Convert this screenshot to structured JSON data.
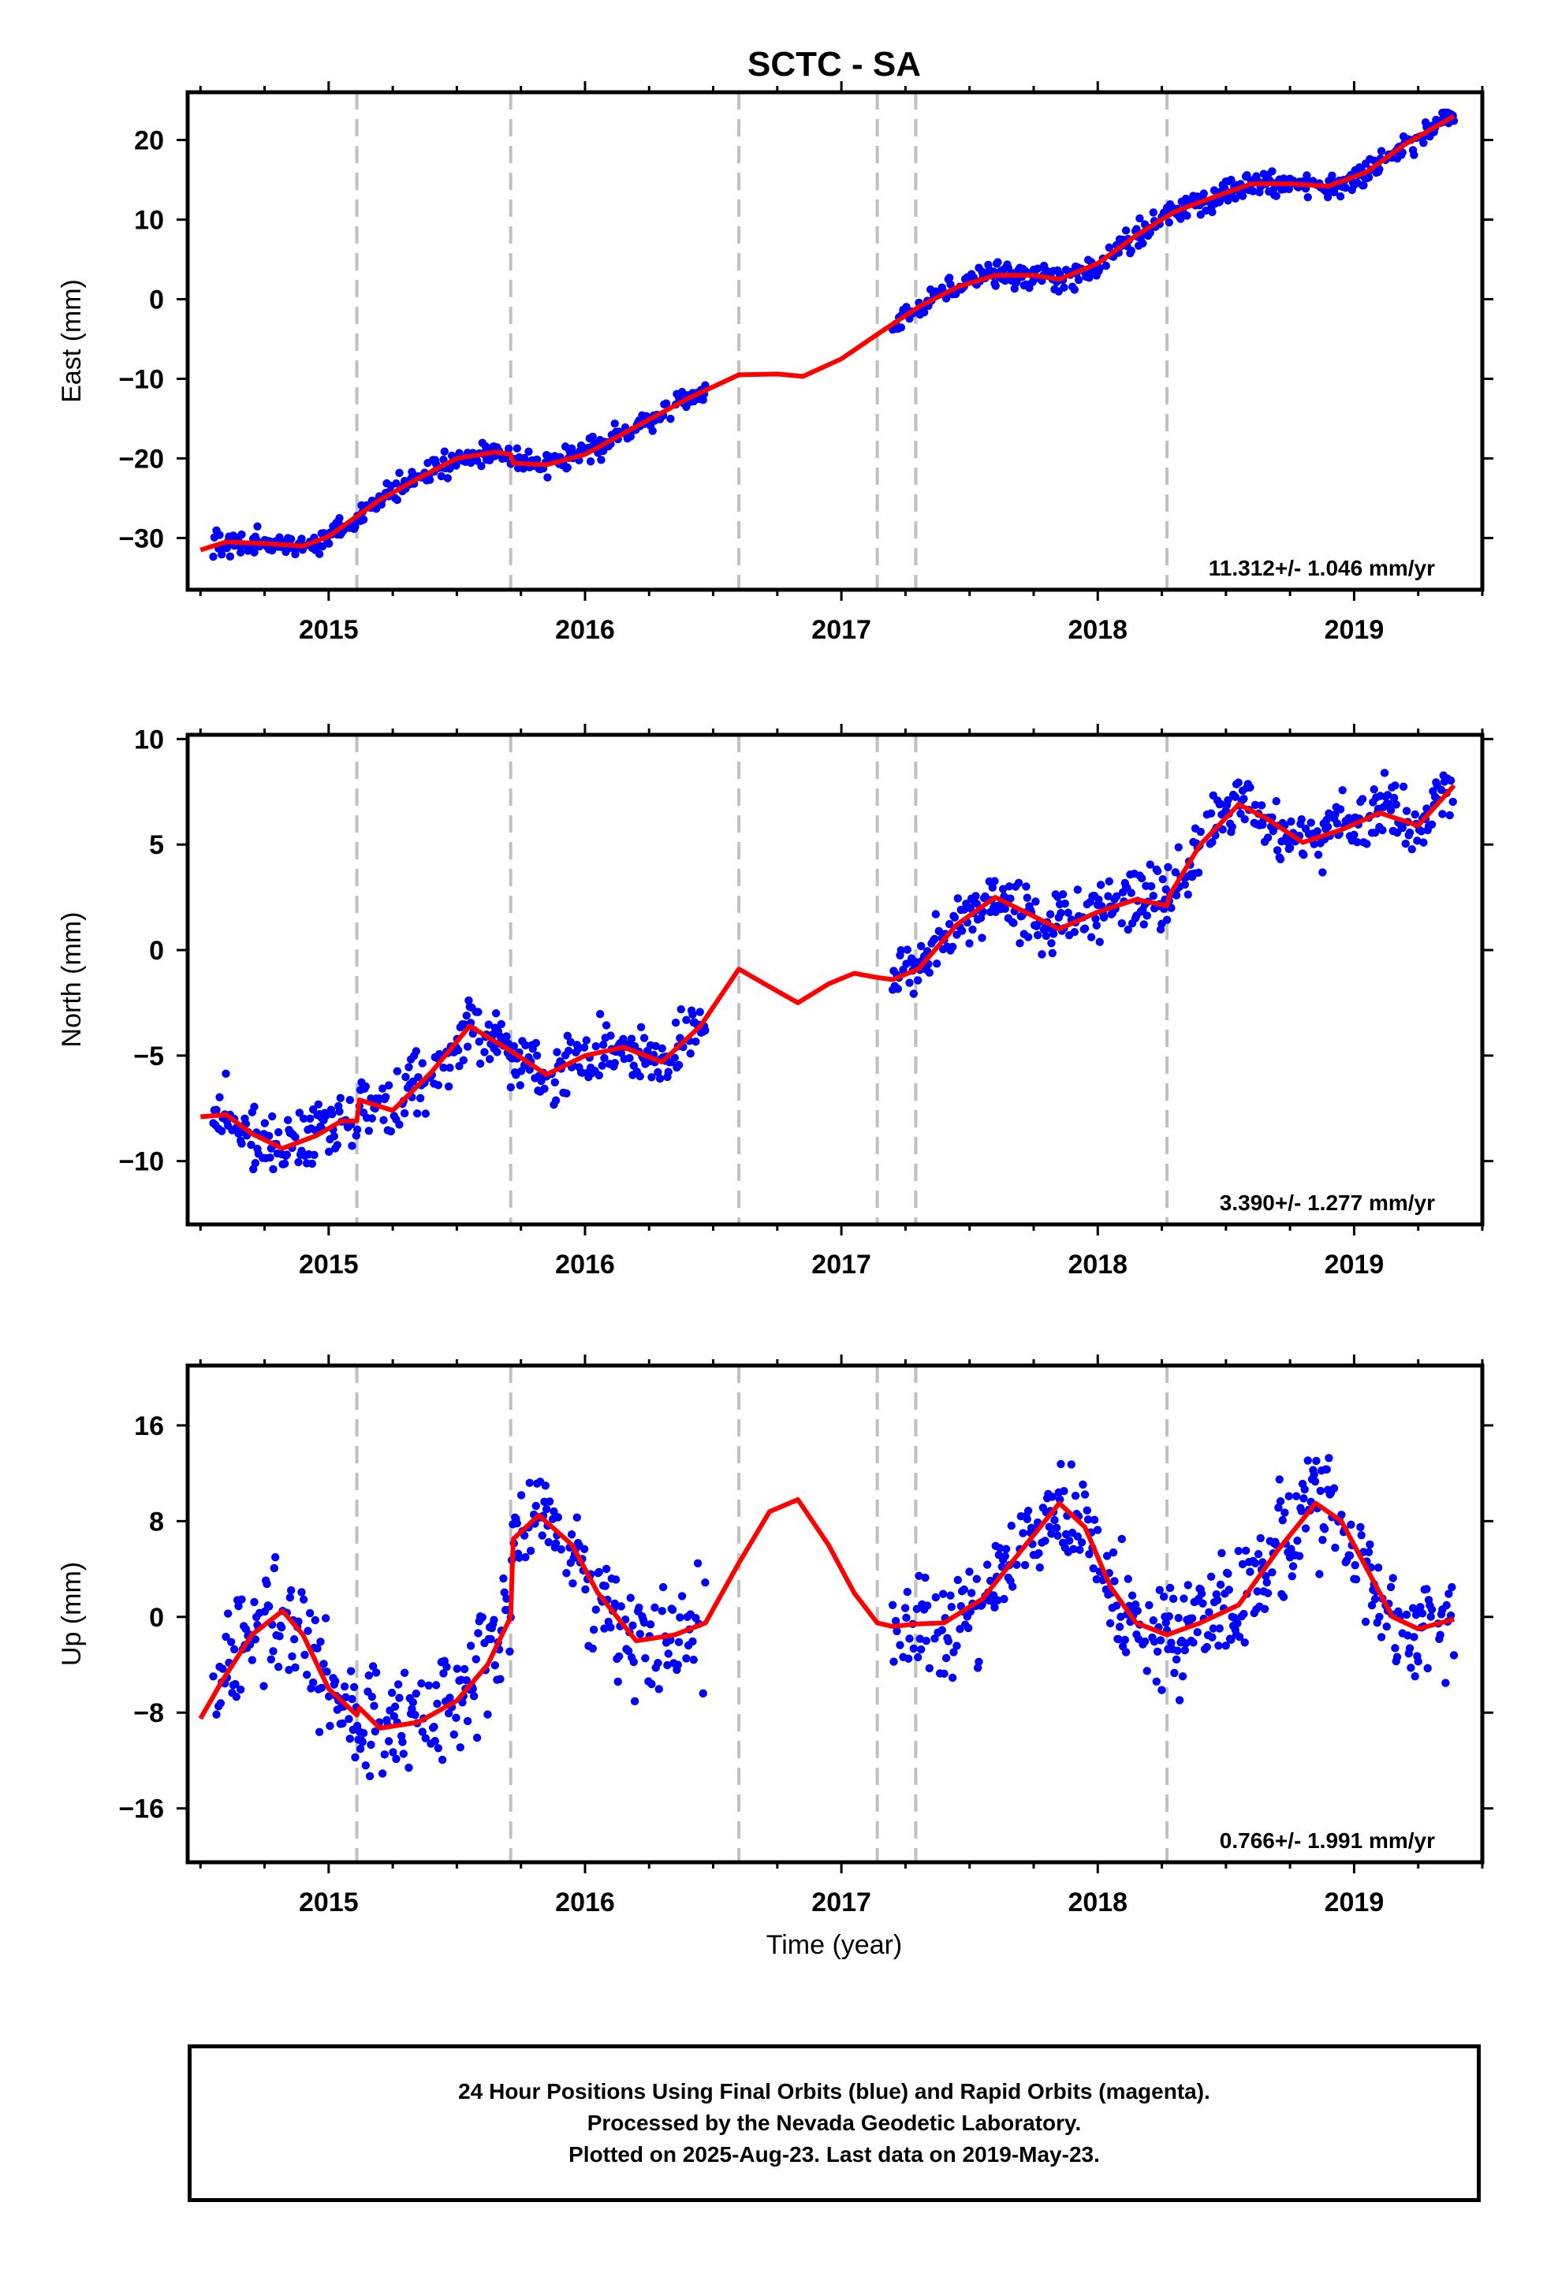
{
  "figure": {
    "title": "SCTC - SA",
    "x_axis_label": "Time (year)",
    "caption_lines": [
      "24 Hour Positions Using Final Orbits (blue) and Rapid Orbits (magenta).",
      "Processed by the Nevada Geodetic Laboratory.",
      "Plotted on 2025-Aug-23. Last data on 2019-May-23."
    ],
    "colors": {
      "data_points": "#0000ff",
      "model_fit": "#ff0000",
      "offset_lines": "#c0c0c0",
      "frame": "#000000"
    }
  },
  "chart_data": [
    {
      "type": "scatter",
      "component": "East",
      "ylabel": "East (mm)",
      "xlabel": "",
      "rate_label": "11.312+/- 1.046 mm/yr",
      "xlim": [
        2014.45,
        2019.5
      ],
      "ylim": [
        -36.5,
        26
      ],
      "x_ticks": [
        2015,
        2016,
        2017,
        2018,
        2019
      ],
      "y_ticks": [
        -30,
        -20,
        -10,
        0,
        10,
        20
      ],
      "offset_lines_x": [
        2015.11,
        2015.71,
        2016.6,
        2017.14,
        2017.29,
        2018.27
      ],
      "series": [
        {
          "name": "Final Orbits (blue)",
          "kind": "points",
          "color": "#0000ff",
          "segments": [
            [
              2014.55,
              2016.47
            ],
            [
              2017.2,
              2019.39
            ]
          ],
          "model": {
            "start": [
              2014.5,
              -31.5
            ],
            "rate": 11.312,
            "annual": 1.5,
            "noise": 1.1
          }
        },
        {
          "name": "model",
          "kind": "line",
          "color": "#ff0000",
          "x": [
            2014.5,
            2014.6,
            2014.75,
            2014.9,
            2015.0,
            2015.1,
            2015.2,
            2015.35,
            2015.5,
            2015.65,
            2015.71,
            2015.72,
            2015.85,
            2016.0,
            2016.2,
            2016.4,
            2016.6,
            2016.75,
            2016.85,
            2017.0,
            2017.15,
            2017.3,
            2017.45,
            2017.6,
            2017.75,
            2017.85,
            2018.0,
            2018.15,
            2018.3,
            2018.45,
            2018.6,
            2018.75,
            2018.9,
            2019.05,
            2019.2,
            2019.39
          ],
          "y": [
            -31.5,
            -30.5,
            -30.7,
            -31.0,
            -29.8,
            -27.5,
            -25.2,
            -22.5,
            -20.0,
            -19.2,
            -19.5,
            -20.6,
            -20.8,
            -19.5,
            -16.0,
            -12.5,
            -9.5,
            -9.4,
            -9.7,
            -7.5,
            -4.2,
            -1.0,
            1.5,
            3.0,
            3.0,
            2.5,
            4.5,
            8.0,
            11.0,
            12.8,
            14.5,
            14.5,
            14.2,
            16.0,
            19.5,
            23.0
          ]
        }
      ]
    },
    {
      "type": "scatter",
      "component": "North",
      "ylabel": "North (mm)",
      "xlabel": "",
      "rate_label": "3.390+/- 1.277 mm/yr",
      "xlim": [
        2014.45,
        2019.5
      ],
      "ylim": [
        -13,
        10.2
      ],
      "x_ticks": [
        2015,
        2016,
        2017,
        2018,
        2019
      ],
      "y_ticks": [
        -10,
        -5,
        0,
        5,
        10
      ],
      "offset_lines_x": [
        2015.11,
        2015.71,
        2016.6,
        2017.14,
        2017.29,
        2018.27
      ],
      "series": [
        {
          "name": "Final Orbits (blue)",
          "kind": "points",
          "color": "#0000ff",
          "segments": [
            [
              2014.55,
              2016.47
            ],
            [
              2017.2,
              2019.39
            ]
          ],
          "model": {
            "start": [
              2014.5,
              -8.0
            ],
            "rate": 3.39,
            "annual": 1.3,
            "noise": 1.0
          }
        },
        {
          "name": "model",
          "kind": "line",
          "color": "#ff0000",
          "x": [
            2014.5,
            2014.6,
            2014.7,
            2014.82,
            2014.95,
            2015.05,
            2015.11,
            2015.12,
            2015.25,
            2015.4,
            2015.55,
            2015.7,
            2015.85,
            2016.0,
            2016.15,
            2016.3,
            2016.45,
            2016.6,
            2016.7,
            2016.83,
            2016.95,
            2017.05,
            2017.14,
            2017.2,
            2017.3,
            2017.45,
            2017.6,
            2017.75,
            2017.85,
            2018.0,
            2018.15,
            2018.27,
            2018.28,
            2018.4,
            2018.55,
            2018.65,
            2018.8,
            2018.95,
            2019.1,
            2019.25,
            2019.39
          ],
          "y": [
            -7.9,
            -7.8,
            -8.7,
            -9.4,
            -8.8,
            -8.1,
            -8.1,
            -7.1,
            -7.6,
            -5.8,
            -3.6,
            -4.7,
            -5.9,
            -5.0,
            -4.6,
            -5.3,
            -3.6,
            -0.9,
            -1.6,
            -2.5,
            -1.6,
            -1.1,
            -1.3,
            -1.4,
            -0.9,
            1.2,
            2.5,
            1.6,
            1.0,
            1.8,
            2.4,
            2.1,
            2.6,
            5.0,
            6.9,
            6.3,
            5.1,
            5.7,
            6.5,
            5.9,
            7.8
          ]
        }
      ]
    },
    {
      "type": "scatter",
      "component": "Up",
      "ylabel": "Up (mm)",
      "xlabel": "Time (year)",
      "rate_label": "0.766+/- 1.991 mm/yr",
      "xlim": [
        2014.45,
        2019.5
      ],
      "ylim": [
        -20.5,
        21
      ],
      "x_ticks": [
        2015,
        2016,
        2017,
        2018,
        2019
      ],
      "y_ticks": [
        -16,
        -8,
        0,
        8,
        16
      ],
      "offset_lines_x": [
        2015.11,
        2015.71,
        2016.6,
        2017.14,
        2017.29,
        2018.27
      ],
      "series": [
        {
          "name": "Final Orbits (blue)",
          "kind": "points",
          "color": "#0000ff",
          "segments": [
            [
              2014.55,
              2016.47
            ],
            [
              2017.2,
              2019.39
            ]
          ],
          "model": {
            "start": [
              2014.5,
              0.0
            ],
            "rate": 0.766,
            "annual": 5.5,
            "noise": 3.2
          }
        },
        {
          "name": "model",
          "kind": "line",
          "color": "#ff0000",
          "x": [
            2014.5,
            2014.58,
            2014.7,
            2014.82,
            2014.9,
            2015.0,
            2015.11,
            2015.12,
            2015.2,
            2015.35,
            2015.5,
            2015.62,
            2015.71,
            2015.72,
            2015.82,
            2015.95,
            2016.05,
            2016.2,
            2016.35,
            2016.47,
            2016.6,
            2016.72,
            2016.83,
            2016.95,
            2017.05,
            2017.14,
            2017.2,
            2017.29,
            2017.4,
            2017.55,
            2017.7,
            2017.85,
            2017.95,
            2018.05,
            2018.15,
            2018.27,
            2018.4,
            2018.55,
            2018.7,
            2018.85,
            2018.95,
            2019.05,
            2019.15,
            2019.25,
            2019.39
          ],
          "y": [
            -8.5,
            -5.5,
            -1.5,
            0.5,
            -1.5,
            -6.0,
            -8.2,
            -7.6,
            -9.3,
            -8.8,
            -7.0,
            -4.0,
            0.0,
            6.5,
            8.5,
            6.0,
            2.0,
            -2.0,
            -1.5,
            -0.5,
            4.5,
            8.8,
            9.8,
            6.0,
            2.0,
            -0.5,
            -0.8,
            -0.6,
            -0.5,
            1.5,
            5.5,
            9.5,
            7.5,
            2.5,
            -0.5,
            -1.5,
            -0.5,
            1.0,
            5.5,
            9.5,
            8.0,
            4.0,
            0.0,
            -1.0,
            -0.2
          ]
        }
      ]
    }
  ]
}
